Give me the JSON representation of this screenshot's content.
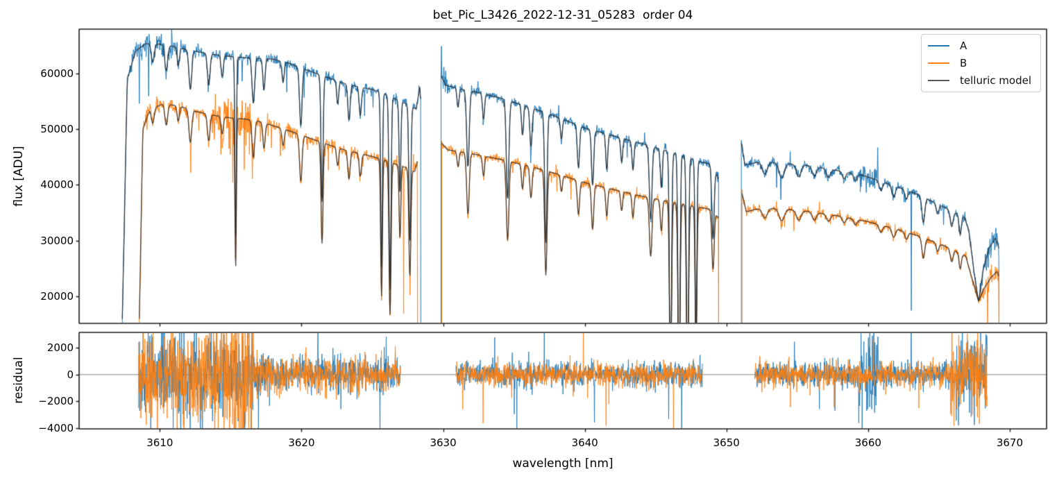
{
  "figure": {
    "title": "bet_Pic_L3426_2022-12-31_05283  order 04"
  },
  "chart_data": {
    "type": "line",
    "title": "bet_Pic_L3426_2022-12-31_05283  order 04",
    "xlabel": "wavelength [nm]",
    "xlim": [
      3604.3,
      3672.6
    ],
    "xticks": [
      3610,
      3620,
      3630,
      3640,
      3650,
      3660,
      3670
    ],
    "grid": false,
    "panels": [
      {
        "name": "flux",
        "ylabel": "flux [ADU]",
        "ylim": [
          15200,
          67900
        ],
        "yticks": [
          20000,
          30000,
          40000,
          50000,
          60000
        ],
        "zero_line": false
      },
      {
        "name": "residual",
        "ylabel": "residual",
        "ylim": [
          -4050,
          3150
        ],
        "yticks": [
          -4000,
          -2000,
          0,
          2000
        ],
        "zero_line": true
      }
    ],
    "legend": {
      "position": "upper right",
      "entries": [
        {
          "label": "A",
          "color": "#1f77b4"
        },
        {
          "label": "B",
          "color": "#ff7f0e"
        },
        {
          "label": "telluric model",
          "color": "#555555"
        }
      ]
    },
    "colors": {
      "A": "#1f77b4",
      "B": "#ff7f0e",
      "model": "rgba(42,42,42,0.85)",
      "zero_line": "#7f7f7f"
    },
    "segments": [
      {
        "x_range": [
          3607.35,
          3628.42
        ],
        "edge_drop": true,
        "A_continuum": [
          [
            3607.35,
            16000
          ],
          [
            3607.7,
            59000
          ],
          [
            3608.3,
            64000
          ],
          [
            3609,
            65300
          ],
          [
            3610,
            65200
          ],
          [
            3611,
            64800
          ],
          [
            3612,
            64200
          ],
          [
            3613,
            63700
          ],
          [
            3614,
            63300
          ],
          [
            3615,
            63000
          ],
          [
            3616,
            62800
          ],
          [
            3617,
            62700
          ],
          [
            3618,
            62500
          ],
          [
            3619,
            61900
          ],
          [
            3620,
            60900
          ],
          [
            3621,
            60000
          ],
          [
            3622,
            59100
          ],
          [
            3623,
            58200
          ],
          [
            3624,
            57600
          ],
          [
            3625,
            57100
          ],
          [
            3626,
            56200
          ],
          [
            3626.8,
            55200
          ],
          [
            3627.5,
            54400
          ],
          [
            3628.1,
            53600
          ],
          [
            3628.35,
            57500
          ],
          [
            3628.42,
            55000
          ]
        ],
        "B_continuum": [
          [
            3608.55,
            16000
          ],
          [
            3608.8,
            50000
          ],
          [
            3609.3,
            53500
          ],
          [
            3610.3,
            54600
          ],
          [
            3611.5,
            54000
          ],
          [
            3612.5,
            53200
          ],
          [
            3613.5,
            52600
          ],
          [
            3615,
            52000
          ],
          [
            3616,
            51800
          ],
          [
            3617,
            51400
          ],
          [
            3618,
            50600
          ],
          [
            3619,
            49800
          ],
          [
            3620,
            48900
          ],
          [
            3621,
            48000
          ],
          [
            3622,
            47100
          ],
          [
            3623,
            46300
          ],
          [
            3624,
            45700
          ],
          [
            3625,
            45100
          ],
          [
            3626,
            44300
          ],
          [
            3626.8,
            43600
          ],
          [
            3627.5,
            43000
          ],
          [
            3628,
            42400
          ],
          [
            3628.2,
            44500
          ]
        ],
        "lines": [
          [
            3609.5,
            0.05,
            0.1
          ],
          [
            3610.45,
            0.07,
            0.1
          ],
          [
            3611.3,
            0.05,
            0.08
          ],
          [
            3612.15,
            0.11,
            0.1
          ],
          [
            3613.45,
            0.09,
            0.09
          ],
          [
            3614.4,
            0.06,
            0.08
          ],
          [
            3615.35,
            0.52,
            0.05
          ],
          [
            3616.6,
            0.13,
            0.09
          ],
          [
            3617.35,
            0.09,
            0.08
          ],
          [
            3618.7,
            0.06,
            0.08
          ],
          [
            3619.95,
            0.17,
            0.09
          ],
          [
            3621.45,
            0.38,
            0.07
          ],
          [
            3622.55,
            0.07,
            0.07
          ],
          [
            3623.35,
            0.11,
            0.08
          ],
          [
            3624.15,
            0.09,
            0.08
          ],
          [
            3625.65,
            0.55,
            0.06
          ],
          [
            3626.25,
            0.62,
            0.07
          ],
          [
            3626.95,
            0.3,
            0.06
          ],
          [
            3627.65,
            0.45,
            0.07
          ]
        ],
        "noise": {
          "A": {
            "sigma": 550,
            "bursts": [
              [
                3607.4,
                3611.0,
                1150
              ]
            ],
            "spike_prob": 0.012
          },
          "B": {
            "sigma": 550,
            "bursts": [
              [
                3608.8,
                3610.0,
                950
              ],
              [
                3613.7,
                3616.6,
                2700
              ]
            ],
            "spike_prob": 0.012
          }
        },
        "spikes": {
          "A": [
            [
              3628.3,
              57800
            ]
          ],
          "B": [
            [
              3627.2,
              17000
            ]
          ]
        }
      },
      {
        "x_range": [
          3629.85,
          3649.45
        ],
        "edge_drop": true,
        "A_continuum": [
          [
            3629.85,
            59500
          ],
          [
            3630.2,
            57800
          ],
          [
            3632,
            56800
          ],
          [
            3634,
            55600
          ],
          [
            3636,
            54000
          ],
          [
            3638,
            52200
          ],
          [
            3640,
            50200
          ],
          [
            3642,
            48800
          ],
          [
            3644,
            47400
          ],
          [
            3645.5,
            46300
          ],
          [
            3647,
            45200
          ],
          [
            3648,
            44200
          ],
          [
            3649,
            43700
          ],
          [
            3649.45,
            41000
          ]
        ],
        "B_continuum": [
          [
            3629.9,
            47500
          ],
          [
            3630.3,
            46300
          ],
          [
            3632,
            45600
          ],
          [
            3634,
            44600
          ],
          [
            3636,
            43400
          ],
          [
            3638,
            42000
          ],
          [
            3640,
            40400
          ],
          [
            3642,
            39200
          ],
          [
            3644,
            38000
          ],
          [
            3646,
            37000
          ],
          [
            3648,
            36000
          ],
          [
            3649,
            35600
          ],
          [
            3649.45,
            34000
          ]
        ],
        "lines": [
          [
            3631.05,
            0.06,
            0.07
          ],
          [
            3631.75,
            0.24,
            0.09
          ],
          [
            3632.85,
            0.08,
            0.07
          ],
          [
            3634.55,
            0.32,
            0.09
          ],
          [
            3635.6,
            0.1,
            0.07
          ],
          [
            3636.2,
            0.13,
            0.08
          ],
          [
            3637.25,
            0.44,
            0.08
          ],
          [
            3638.35,
            0.07,
            0.07
          ],
          [
            3639.55,
            0.15,
            0.08
          ],
          [
            3640.55,
            0.2,
            0.08
          ],
          [
            3641.55,
            0.13,
            0.07
          ],
          [
            3642.6,
            0.09,
            0.07
          ],
          [
            3643.4,
            0.11,
            0.07
          ],
          [
            3644.65,
            0.28,
            0.09
          ],
          [
            3645.4,
            0.15,
            0.07
          ],
          [
            3646.05,
            0.95,
            0.07
          ],
          [
            3646.65,
            0.97,
            0.07
          ],
          [
            3647.25,
            0.97,
            0.07
          ],
          [
            3647.85,
            0.75,
            0.06
          ],
          [
            3649.05,
            0.3,
            0.08
          ]
        ],
        "noise": {
          "A": {
            "sigma": 420,
            "bursts": [
              [
                3629.85,
                3630.4,
                1100
              ]
            ],
            "spike_prob": 0.01
          },
          "B": {
            "sigma": 390,
            "bursts": [],
            "spike_prob": 0.01
          }
        },
        "spikes": {
          "A": [],
          "B": []
        }
      },
      {
        "x_range": [
          3651.05,
          3669.3
        ],
        "edge_drop": true,
        "A_continuum": [
          [
            3651.05,
            47500
          ],
          [
            3651.3,
            43600
          ],
          [
            3652.5,
            44200
          ],
          [
            3654,
            43900
          ],
          [
            3656,
            43400
          ],
          [
            3658,
            42500
          ],
          [
            3659.5,
            41800
          ],
          [
            3660.5,
            41000
          ],
          [
            3662,
            39700
          ],
          [
            3663.5,
            38300
          ],
          [
            3665,
            36500
          ],
          [
            3666,
            35200
          ],
          [
            3666.8,
            34200
          ],
          [
            3667.1,
            32000
          ],
          [
            3667.5,
            24000
          ],
          [
            3667.8,
            19000
          ],
          [
            3668.1,
            24500
          ],
          [
            3668.5,
            28500
          ],
          [
            3669,
            30500
          ],
          [
            3669.25,
            28500
          ]
        ],
        "B_continuum": [
          [
            3651.1,
            38500
          ],
          [
            3651.4,
            35200
          ],
          [
            3652.5,
            35900
          ],
          [
            3654,
            35700
          ],
          [
            3656,
            35200
          ],
          [
            3658,
            34400
          ],
          [
            3660,
            33400
          ],
          [
            3662,
            32100
          ],
          [
            3663.5,
            30900
          ],
          [
            3665,
            29500
          ],
          [
            3666,
            28400
          ],
          [
            3666.9,
            27200
          ],
          [
            3667.3,
            23500
          ],
          [
            3667.8,
            19200
          ],
          [
            3668.2,
            21500
          ],
          [
            3668.7,
            23500
          ],
          [
            3669.1,
            24500
          ],
          [
            3669.25,
            23500
          ]
        ],
        "lines": [
          [
            3652.7,
            0.05,
            0.18
          ],
          [
            3653.9,
            0.06,
            0.18
          ],
          [
            3655.1,
            0.05,
            0.16
          ],
          [
            3656.2,
            0.04,
            0.15
          ],
          [
            3657.2,
            0.035,
            0.14
          ],
          [
            3658.3,
            0.03,
            0.12
          ],
          [
            3659.1,
            0.03,
            0.12
          ],
          [
            3660.9,
            0.04,
            0.12
          ],
          [
            3661.8,
            0.05,
            0.12
          ],
          [
            3662.7,
            0.04,
            0.1
          ],
          [
            3663.9,
            0.12,
            0.1
          ],
          [
            3664.9,
            0.05,
            0.1
          ],
          [
            3665.9,
            0.08,
            0.1
          ],
          [
            3666.5,
            0.1,
            0.08
          ]
        ],
        "noise": {
          "A": {
            "sigma": 430,
            "bursts": [
              [
                3659.3,
                3660.7,
                1800
              ],
              [
                3667.9,
                3669.3,
                1200
              ]
            ],
            "spike_prob": 0.01
          },
          "B": {
            "sigma": 390,
            "bursts": [
              [
                3667.9,
                3669.3,
                1100
              ]
            ],
            "spike_prob": 0.01
          }
        },
        "spikes": {
          "A": [
            [
              3663.05,
              17500
            ]
          ],
          "B": []
        }
      }
    ],
    "residual_segments": [
      {
        "x_range": [
          3608.5,
          3627.0
        ],
        "A": {
          "sigma": 650,
          "bursts": [
            [
              3608.5,
              3613.7,
              1600
            ],
            [
              3613.7,
              3616.6,
              1500
            ],
            [
              3616.6,
              3618.5,
              850
            ]
          ],
          "spike_prob": 0.015
        },
        "B": {
          "sigma": 650,
          "bursts": [
            [
              3608.5,
              3613.7,
              1600
            ],
            [
              3613.7,
              3616.6,
              2700
            ],
            [
              3616.6,
              3618.5,
              850
            ]
          ],
          "spike_prob": 0.015
        }
      },
      {
        "x_range": [
          3630.9,
          3648.3
        ],
        "A": {
          "sigma": 480,
          "bursts": [],
          "spike_prob": 0.012
        },
        "B": {
          "sigma": 450,
          "bursts": [],
          "spike_prob": 0.012
        },
        "spikes": {
          "A": [
            [
              3635.2,
              -4200
            ]
          ],
          "B": [
            [
              3641.5,
              -3800
            ]
          ]
        }
      },
      {
        "x_range": [
          3652.0,
          3668.4
        ],
        "A": {
          "sigma": 480,
          "bursts": [
            [
              3659.3,
              3660.7,
              1900
            ],
            [
              3665.8,
              3668.4,
              1350
            ]
          ],
          "spike_prob": 0.012
        },
        "B": {
          "sigma": 450,
          "bursts": [
            [
              3665.8,
              3668.4,
              1350
            ]
          ],
          "spike_prob": 0.012
        }
      }
    ]
  }
}
